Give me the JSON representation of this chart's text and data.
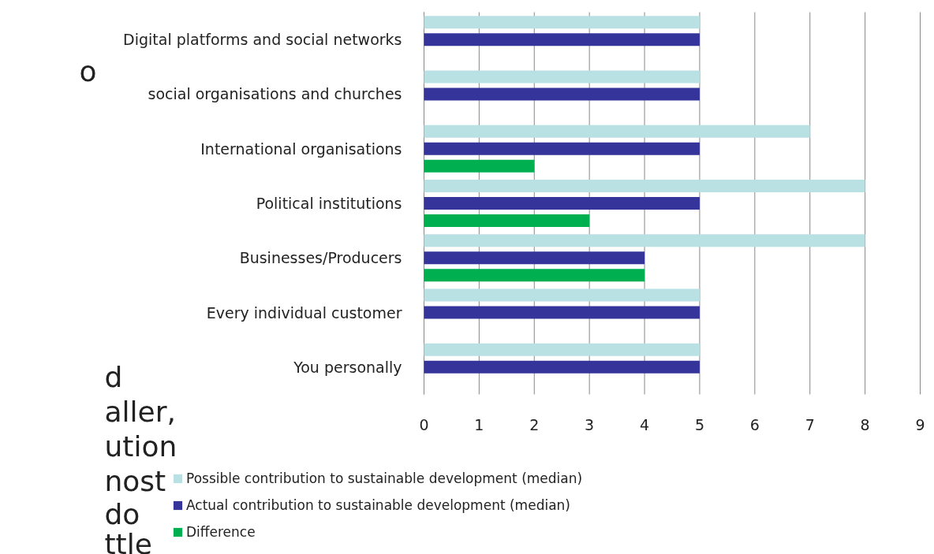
{
  "chart_data": {
    "type": "bar",
    "orientation": "horizontal",
    "categories": [
      "Digital platforms and social networks",
      "social organisations and churches",
      "International organisations",
      "Political institutions",
      "Businesses/Producers",
      "Every individual customer",
      "You personally"
    ],
    "series": [
      {
        "name": "Possible contribution to sustainable development (median)",
        "color": "#b9e0e3",
        "values": [
          5,
          5,
          7,
          8,
          8,
          5,
          5
        ]
      },
      {
        "name": "Actual contribution to sustainable development (median)",
        "color": "#35349b",
        "values": [
          5,
          5,
          5,
          5,
          4,
          5,
          5
        ]
      },
      {
        "name": "Difference",
        "color": "#00b050",
        "values": [
          null,
          null,
          2,
          3,
          4,
          null,
          null
        ]
      }
    ],
    "xlim": [
      0,
      9
    ],
    "xticks": [
      0,
      1,
      2,
      3,
      4,
      5,
      6,
      7,
      8,
      9
    ],
    "grid": "x",
    "legend": "bottom",
    "annotations": [
      "o",
      "d",
      "aller,",
      "ution",
      "nost",
      "do",
      "ttle"
    ]
  }
}
